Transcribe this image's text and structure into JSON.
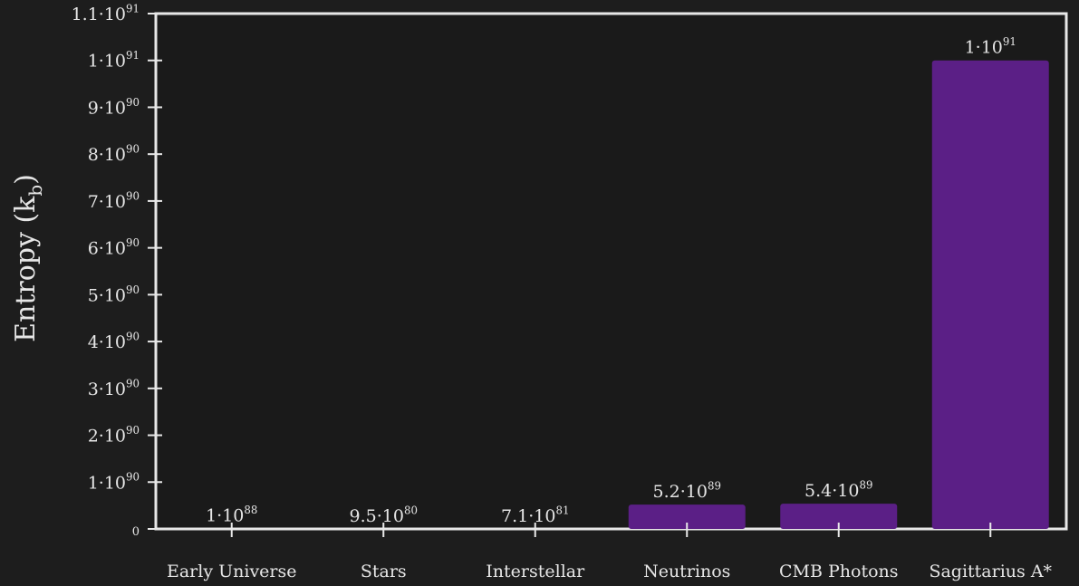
{
  "chart_data": {
    "type": "bar",
    "title": "",
    "xlabel": "",
    "ylabel": "Entropy (k",
    "ylabel_sub": "b",
    "ylabel_close": ")",
    "ylim": [
      0,
      1.1e+91
    ],
    "grid": false,
    "categories": [
      "Early Universe",
      "Stars",
      "Interstellar",
      "Neutrinos",
      "CMB Photons",
      "Sagittarius A*"
    ],
    "values": [
      1e+88,
      9.5e+80,
      7.1e+81,
      5.2e+89,
      5.4e+89,
      1e+91
    ],
    "data_labels": [
      {
        "mant": "1·10",
        "exp": "88"
      },
      {
        "mant": "9.5·10",
        "exp": "80"
      },
      {
        "mant": "7.1·10",
        "exp": "81"
      },
      {
        "mant": "5.2·10",
        "exp": "89"
      },
      {
        "mant": "5.4·10",
        "exp": "89"
      },
      {
        "mant": "1·10",
        "exp": "91"
      }
    ],
    "y_ticks": [
      {
        "value": 0,
        "mant": "0",
        "exp": ""
      },
      {
        "value": 1e+90,
        "mant": "1·10",
        "exp": "90"
      },
      {
        "value": 2e+90,
        "mant": "2·10",
        "exp": "90"
      },
      {
        "value": 3e+90,
        "mant": "3·10",
        "exp": "90"
      },
      {
        "value": 4e+90,
        "mant": "4·10",
        "exp": "90"
      },
      {
        "value": 5e+90,
        "mant": "5·10",
        "exp": "90"
      },
      {
        "value": 6e+90,
        "mant": "6·10",
        "exp": "90"
      },
      {
        "value": 7e+90,
        "mant": "7·10",
        "exp": "90"
      },
      {
        "value": 8e+90,
        "mant": "8·10",
        "exp": "90"
      },
      {
        "value": 9e+90,
        "mant": "9·10",
        "exp": "90"
      },
      {
        "value": 1e+91,
        "mant": "1·10",
        "exp": "91"
      },
      {
        "value": 1.1e+91,
        "mant": "1.1·10",
        "exp": "91"
      }
    ],
    "bar_color": "#5b1f86",
    "bar_highlight": "#6a2899"
  }
}
